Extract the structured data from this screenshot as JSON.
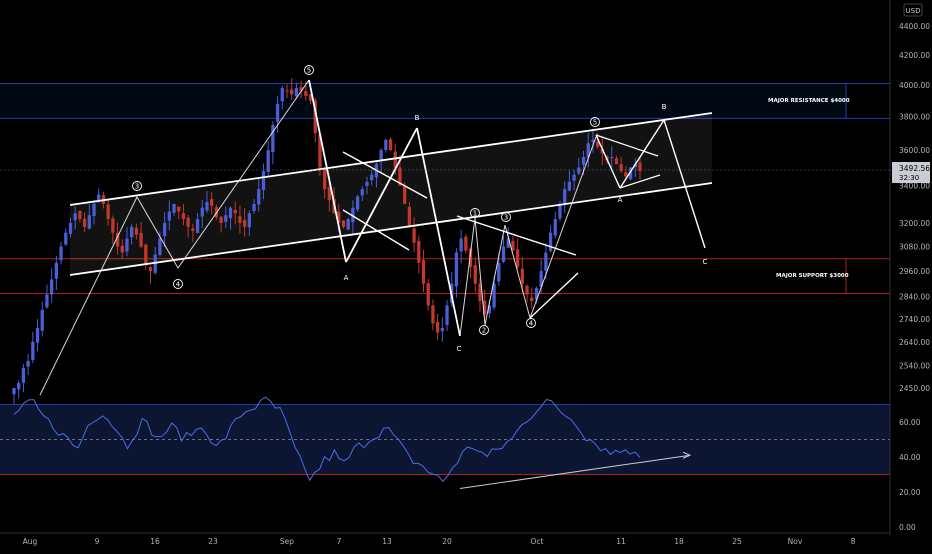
{
  "chart_data": {
    "type": "candlestick",
    "title": "",
    "currency_label": "USD",
    "price_axis": {
      "scale": "log",
      "ticks": [
        "4400.00",
        "4200.00",
        "4000.00",
        "3800.00",
        "3600.00",
        "3400.00",
        "3200.00",
        "3080.00",
        "2960.00",
        "2840.00",
        "2740.00",
        "2640.00",
        "2540.00",
        "2450.00"
      ],
      "range": [
        2390,
        4580
      ]
    },
    "rsi_axis": {
      "ticks": [
        "60.00",
        "40.00",
        "20.00",
        "0.00"
      ],
      "range": [
        0,
        80
      ],
      "upper_band": 70,
      "lower_band": 30,
      "mid_line": 50
    },
    "x_axis": {
      "ticks": [
        "Aug",
        "9",
        "16",
        "23",
        "Sep",
        "7",
        "13",
        "20",
        "Oct",
        "11",
        "18",
        "25",
        "Nov",
        "8"
      ]
    },
    "last_price": {
      "value": "3492.56",
      "countdown": "32:30"
    },
    "levels": [
      {
        "label": "MAJOR RESISTANCE $4000",
        "price_top": 4010,
        "price_bottom": 3790,
        "color": "#1e3fa8"
      },
      {
        "label": "MAJOR SUPPORT $3000",
        "price_top": 3020,
        "price_bottom": 2855,
        "color": "#b02020"
      }
    ],
    "wave_labels": [
      "3",
      "4",
      "5",
      "A",
      "B",
      "C",
      "1",
      "2",
      "3",
      "4",
      "5",
      "A",
      "B",
      "C"
    ],
    "price_path_close": [
      2450,
      2470,
      2530,
      2560,
      2640,
      2700,
      2780,
      2850,
      2920,
      3000,
      3080,
      3150,
      3200,
      3250,
      3220,
      3180,
      3240,
      3300,
      3350,
      3300,
      3220,
      3150,
      3080,
      3050,
      3120,
      3180,
      3140,
      3080,
      2990,
      2960,
      3040,
      3120,
      3200,
      3260,
      3300,
      3260,
      3220,
      3180,
      3160,
      3220,
      3280,
      3310,
      3290,
      3230,
      3200,
      3240,
      3280,
      3250,
      3200,
      3180,
      3250,
      3300,
      3380,
      3480,
      3600,
      3750,
      3880,
      3980,
      3960,
      3940,
      3980,
      3960,
      3930,
      3900,
      3700,
      3500,
      3380,
      3320,
      3250,
      3200,
      3180,
      3220,
      3280,
      3340,
      3380,
      3420,
      3460,
      3520,
      3600,
      3660,
      3600,
      3500,
      3400,
      3300,
      3180,
      3100,
      3000,
      2900,
      2800,
      2720,
      2680,
      2700,
      2800,
      2900,
      3050,
      3120,
      3060,
      2980,
      2900,
      2820,
      2760,
      2800,
      2900,
      3000,
      3080,
      3120,
      3060,
      2980,
      2900,
      2850,
      2820,
      2880,
      2960,
      3050,
      3150,
      3220,
      3300,
      3380,
      3420,
      3460,
      3500,
      3560,
      3640,
      3660,
      3620,
      3580,
      3540,
      3560,
      3520,
      3480,
      3450,
      3500,
      3520,
      3480
    ],
    "rsi_series": [
      65,
      66,
      68,
      71,
      70,
      66,
      63,
      60,
      58,
      55,
      52,
      50,
      47,
      45,
      52,
      58,
      62,
      64,
      66,
      62,
      58,
      56,
      50,
      47,
      52,
      56,
      60,
      58,
      55,
      50,
      53,
      55,
      57,
      55,
      52,
      51,
      54,
      55,
      57,
      56,
      50,
      45,
      48,
      52,
      56,
      60,
      64,
      66,
      68,
      69,
      70,
      72,
      71,
      68,
      66,
      60,
      52,
      44,
      38,
      32,
      28,
      30,
      34,
      38,
      40,
      42,
      38,
      36,
      40,
      44,
      46,
      48,
      50,
      52,
      54,
      56,
      55,
      52,
      48,
      44,
      40,
      38,
      36,
      35,
      32,
      30,
      28,
      26,
      30,
      34,
      38,
      42,
      44,
      46,
      45,
      42,
      40,
      42,
      44,
      46,
      48,
      50,
      54,
      58,
      62,
      64,
      68,
      70,
      72,
      70,
      68,
      66,
      64,
      62,
      60,
      56,
      52,
      50,
      48,
      46,
      44,
      42,
      44,
      45,
      42,
      43,
      44,
      42
    ],
    "rsi_trendline": {
      "from_value": 22,
      "to_value": 41
    }
  }
}
